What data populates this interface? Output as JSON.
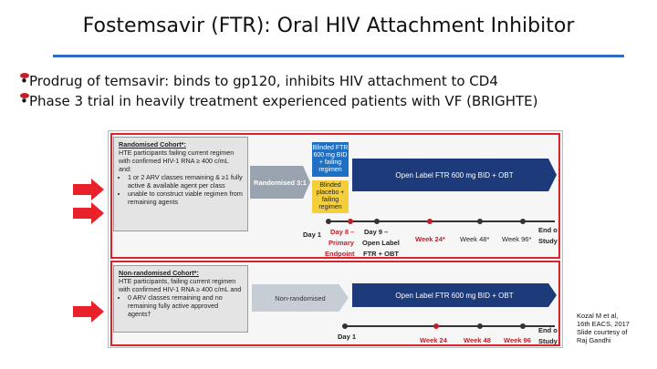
{
  "title": "Fostemsavir (FTR): Oral HIV Attachment Inhibitor",
  "bullets": [
    "Prodrug of temsavir: binds to gp120, inhibits HIV attachment to CD4",
    "Phase 3 trial in heavily treatment experienced patients with VF (BRIGHTE)"
  ],
  "randomised": {
    "heading": "Randomised Cohort*:",
    "text": "HTE participants failing current regimen with confirmed HIV-1 RNA ≥ 400 c/mL and:",
    "items": [
      "1 or 2 ARV classes remaining & ≥1 fully active & available agent per class",
      "unable to construct viable regimen from remaining agents"
    ],
    "arm_label": "Randomised 3:1",
    "blinded_ftr": "Blinded FTR 600 mg BID + failing regimen",
    "blinded_placebo": "Blinded placebo + failing regimen",
    "open_label": "Open Label FTR 600 mg BID + OBT",
    "timeline": {
      "day1": "Day 1",
      "day8": "Day 8 –",
      "primary": "Primary",
      "endpoint": "Endpoint",
      "day9": "Day 9 –",
      "open_label": "Open Label",
      "ftr_obt": "FTR + OBT",
      "week24": "Week 24*",
      "week48": "Week 48*",
      "week96": "Week 96*",
      "end": "End o",
      "study": "Study"
    }
  },
  "nonrandomised": {
    "heading": "Non-randomised Cohort*:",
    "text": "HTE participants, failing current regimen with confirmed HIV-1 RNA ≥ 400 c/mL and",
    "items": [
      "0 ARV classes remaining and no remaining fully active approved agents†"
    ],
    "arm_label": "Non-randomised",
    "open_label": "Open Label FTR 600 mg BID + OBT",
    "timeline": {
      "day1": "Day 1",
      "week24": "Week 24",
      "week48": "Week 48",
      "week96": "Week 96",
      "end": "End o",
      "study": "Study"
    }
  },
  "credit": [
    "Kozal M et al,",
    "16th EACS, 2017",
    "Slide courtesy of",
    "Raj Gandhi"
  ],
  "colors": {
    "red": "#d9232d",
    "blue": "#1f6fc2",
    "navy": "#1d3b7a",
    "yellow": "#f4cf3b",
    "rule": "#2e6bc2"
  }
}
